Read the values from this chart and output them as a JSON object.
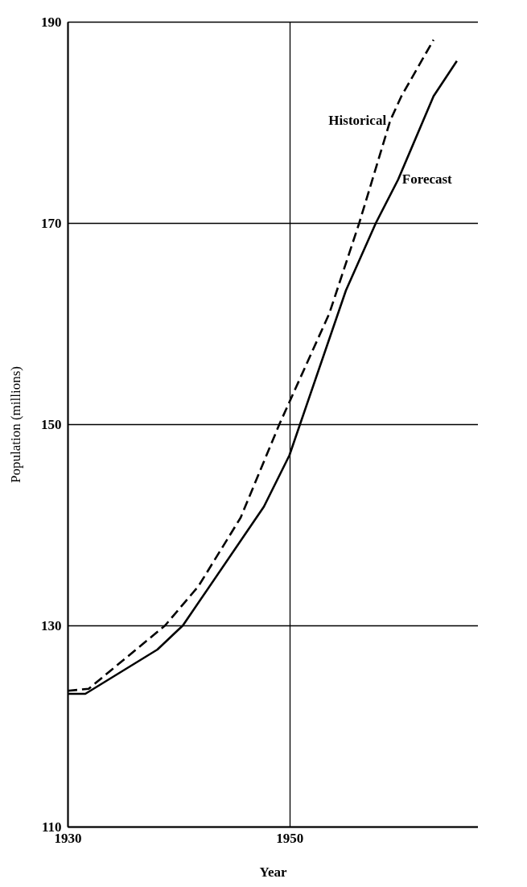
{
  "chart_data": {
    "type": "line",
    "xlabel": "Year",
    "ylabel": "Population (millions)",
    "xlim": [
      1930,
      1967
    ],
    "ylim": [
      110,
      190
    ],
    "xticks": [
      1930,
      1950
    ],
    "yticks": [
      110,
      130,
      150,
      170,
      190
    ],
    "grid": true,
    "legend": false,
    "series": [
      {
        "name": "Forecast",
        "color": "#000000",
        "line_style": "solid",
        "x": [
          1930,
          1931.6,
          1938.1,
          1940.4,
          1947.7,
          1950,
          1955.1,
          1957.8,
          1959.8,
          1963,
          1965.1
        ],
        "values": [
          123.2,
          123.2,
          127.6,
          130,
          141.8,
          146.9,
          163.3,
          170,
          174.3,
          182.6,
          186.1
        ]
      },
      {
        "name": "Historical",
        "color": "#000000",
        "line_style": "dashed",
        "x": [
          1930,
          1931.9,
          1938.8,
          1941.8,
          1945.6,
          1949.1,
          1953.6,
          1956.3,
          1959.1,
          1960.1,
          1963
        ],
        "values": [
          123.5,
          123.7,
          130,
          133.9,
          140.7,
          150,
          161,
          170,
          180.2,
          182.6,
          188.2
        ]
      }
    ]
  }
}
